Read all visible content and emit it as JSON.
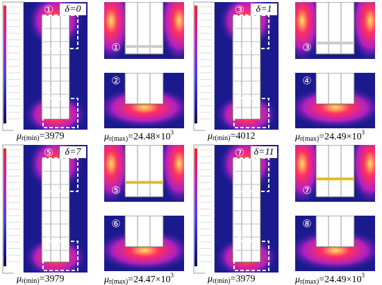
{
  "panels": [
    {
      "delta": "δ=0",
      "top_marker": "①",
      "bottom_marker": "②",
      "mu_min": {
        "symbol": "μ",
        "sub": "r(min)",
        "value": "=3979"
      },
      "mu_max": {
        "symbol": "μ",
        "sub": "r(max)",
        "value": "=24.48×10",
        "exponent": "3"
      }
    },
    {
      "delta": "δ=1",
      "top_marker": "③",
      "bottom_marker": "④",
      "mu_min": {
        "symbol": "μ",
        "sub": "r(min)",
        "value": "=4012"
      },
      "mu_max": {
        "symbol": "μ",
        "sub": "r(max)",
        "value": "=24.49×10",
        "exponent": "3"
      }
    },
    {
      "delta": "δ=7",
      "top_marker": "⑤",
      "bottom_marker": "⑥",
      "mu_min": {
        "symbol": "μ",
        "sub": "r(min)",
        "value": "=3979"
      },
      "mu_max": {
        "symbol": "μ",
        "sub": "r(max)",
        "value": "=24.47×10",
        "exponent": "3"
      }
    },
    {
      "delta": "δ=11",
      "top_marker": "⑦",
      "bottom_marker": "⑧",
      "mu_min": {
        "symbol": "μ",
        "sub": "r(min)",
        "value": "=3979"
      },
      "mu_max": {
        "symbol": "μ",
        "sub": "r(max)",
        "value": "=24.49×10",
        "exponent": "3"
      }
    }
  ]
}
